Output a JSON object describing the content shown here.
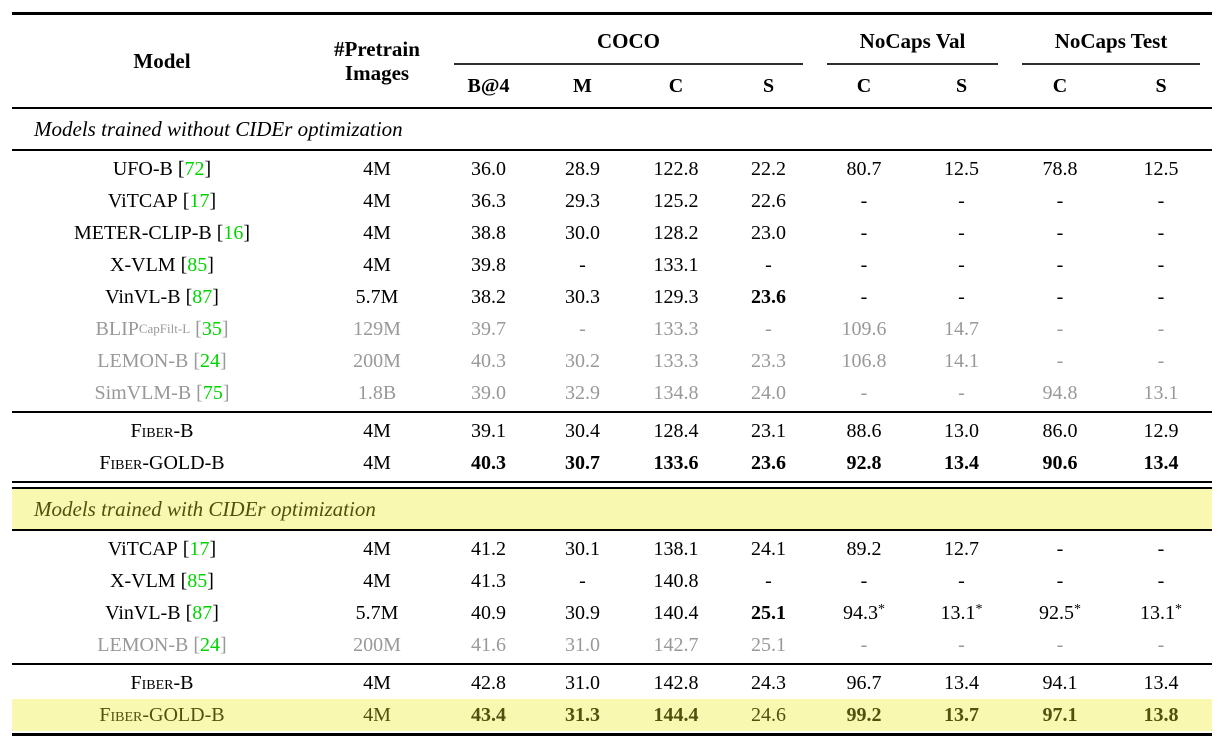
{
  "colors": {
    "citation_green": "#00d400",
    "highlight_yellow": "#f8f8b0",
    "olive_text": "#50510f",
    "deemphasis_gray": "#999999"
  },
  "header": {
    "model": "Model",
    "pretrain_line1": "#Pretrain",
    "pretrain_line2": "Images",
    "groups": [
      {
        "label": "COCO",
        "cols": [
          "B@4",
          "M",
          "C",
          "S"
        ]
      },
      {
        "label": "NoCaps Val",
        "cols": [
          "C",
          "S"
        ]
      },
      {
        "label": "NoCaps Test",
        "cols": [
          "C",
          "S"
        ]
      }
    ]
  },
  "sections": [
    {
      "title": "Models trained without CIDEr optimization",
      "title_highlight": false,
      "groups": [
        {
          "rows": [
            {
              "model": {
                "name": "UFO-B",
                "cite": "72"
              },
              "pretrain": "4M",
              "values": [
                "36.0",
                "28.9",
                "122.8",
                "22.2",
                "80.7",
                "12.5",
                "78.8",
                "12.5"
              ],
              "bold": []
            },
            {
              "model": {
                "name": "ViTCAP",
                "cite": "17"
              },
              "pretrain": "4M",
              "values": [
                "36.3",
                "29.3",
                "125.2",
                "22.6",
                "-",
                "-",
                "-",
                "-"
              ],
              "bold": []
            },
            {
              "model": {
                "name": "METER-CLIP-B",
                "cite": "16"
              },
              "pretrain": "4M",
              "values": [
                "38.8",
                "30.0",
                "128.2",
                "23.0",
                "-",
                "-",
                "-",
                "-"
              ],
              "bold": []
            },
            {
              "model": {
                "name": "X-VLM",
                "cite": "85"
              },
              "pretrain": "4M",
              "values": [
                "39.8",
                "-",
                "133.1",
                "-",
                "-",
                "-",
                "-",
                "-"
              ],
              "bold": []
            },
            {
              "model": {
                "name": "VinVL-B",
                "cite": "87"
              },
              "pretrain": "5.7M",
              "values": [
                "38.2",
                "30.3",
                "129.3",
                "23.6",
                "-",
                "-",
                "-",
                "-"
              ],
              "bold": [
                3
              ]
            },
            {
              "model": {
                "name": "BLIP",
                "sub": "CapFilt-L",
                "cite": "35"
              },
              "gray": true,
              "pretrain": "129M",
              "values": [
                "39.7",
                "-",
                "133.3",
                "-",
                "109.6",
                "14.7",
                "-",
                "-"
              ],
              "bold": []
            },
            {
              "model": {
                "name": "LEMON-B",
                "cite": "24"
              },
              "gray": true,
              "pretrain": "200M",
              "values": [
                "40.3",
                "30.2",
                "133.3",
                "23.3",
                "106.8",
                "14.1",
                "-",
                "-"
              ],
              "bold": []
            },
            {
              "model": {
                "name": "SimVLM-B",
                "cite": "75"
              },
              "gray": true,
              "pretrain": "1.8B",
              "values": [
                "39.0",
                "32.9",
                "134.8",
                "24.0",
                "-",
                "-",
                "94.8",
                "13.1"
              ],
              "bold": []
            }
          ]
        },
        {
          "rows": [
            {
              "model": {
                "name": "Fiber-B",
                "smallcaps": true
              },
              "pretrain": "4M",
              "values": [
                "39.1",
                "30.4",
                "128.4",
                "23.1",
                "88.6",
                "13.0",
                "86.0",
                "12.9"
              ],
              "bold": []
            },
            {
              "model": {
                "name": "Fiber-GOLD-B",
                "smallcaps": true
              },
              "pretrain": "4M",
              "values": [
                "40.3",
                "30.7",
                "133.6",
                "23.6",
                "92.8",
                "13.4",
                "90.6",
                "13.4"
              ],
              "bold": [
                0,
                1,
                2,
                3,
                4,
                5,
                6,
                7
              ]
            }
          ]
        }
      ]
    },
    {
      "title": "Models trained with CIDEr optimization",
      "title_highlight": true,
      "groups": [
        {
          "rows": [
            {
              "model": {
                "name": "ViTCAP",
                "cite": "17"
              },
              "pretrain": "4M",
              "values": [
                "41.2",
                "30.1",
                "138.1",
                "24.1",
                "89.2",
                "12.7",
                "-",
                "-"
              ],
              "bold": []
            },
            {
              "model": {
                "name": "X-VLM",
                "cite": "85"
              },
              "pretrain": "4M",
              "values": [
                "41.3",
                "-",
                "140.8",
                "-",
                "-",
                "-",
                "-",
                "-"
              ],
              "bold": []
            },
            {
              "model": {
                "name": "VinVL-B",
                "cite": "87"
              },
              "pretrain": "5.7M",
              "values": [
                "40.9",
                "30.9",
                "140.4",
                "25.1",
                "94.3*",
                "13.1*",
                "92.5*",
                "13.1*"
              ],
              "bold": [
                3
              ]
            },
            {
              "model": {
                "name": "LEMON-B",
                "cite": "24"
              },
              "gray": true,
              "pretrain": "200M",
              "values": [
                "41.6",
                "31.0",
                "142.7",
                "25.1",
                "-",
                "-",
                "-",
                "-"
              ],
              "bold": []
            }
          ]
        },
        {
          "rows": [
            {
              "model": {
                "name": "Fiber-B",
                "smallcaps": true
              },
              "pretrain": "4M",
              "values": [
                "42.8",
                "31.0",
                "142.8",
                "24.3",
                "96.7",
                "13.4",
                "94.1",
                "13.4"
              ],
              "bold": []
            },
            {
              "model": {
                "name": "Fiber-GOLD-B",
                "smallcaps": true
              },
              "highlight": true,
              "pretrain": "4M",
              "values": [
                "43.4",
                "31.3",
                "144.4",
                "24.6",
                "99.2",
                "13.7",
                "97.1",
                "13.8"
              ],
              "bold": [
                0,
                1,
                2,
                4,
                5,
                6,
                7
              ]
            }
          ]
        }
      ]
    }
  ]
}
